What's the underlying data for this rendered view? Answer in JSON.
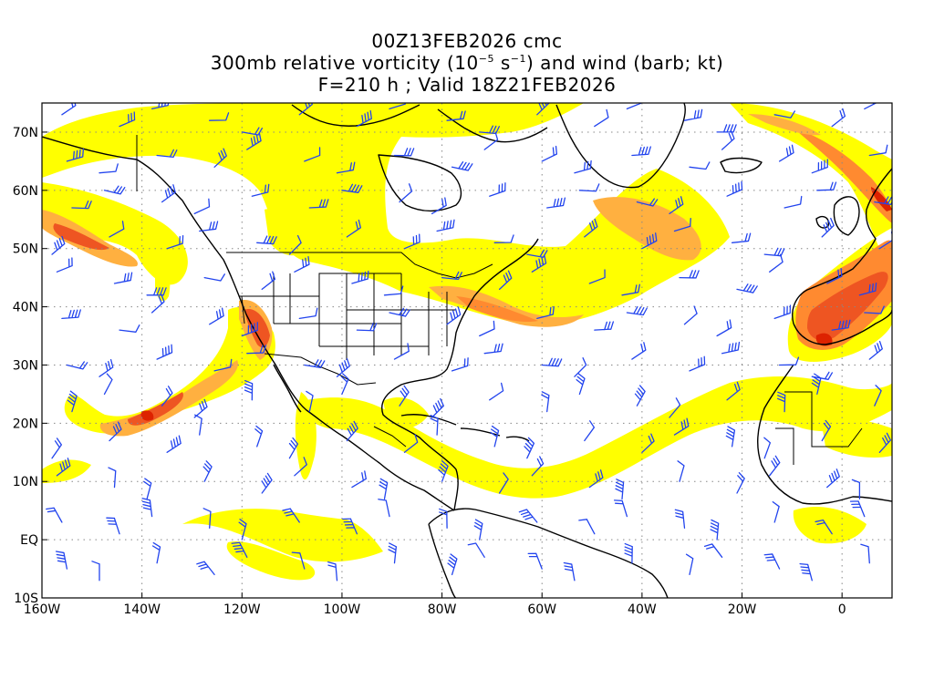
{
  "header": {
    "line1": "00Z13FEB2026 cmc",
    "line2_prefix": "300mb relative vorticity (10",
    "line2_exp1": "−5",
    "line2_mid": " s",
    "line2_exp2": "−1",
    "line2_suffix": ") and wind (barb; kt)",
    "line3": "F=210 h ; Valid 18Z21FEB2026"
  },
  "map": {
    "projection": "latitude-longitude",
    "lon_range": [
      -160,
      10
    ],
    "lat_range": [
      -10,
      75
    ],
    "lon_ticks": [
      "160W",
      "140W",
      "120W",
      "100W",
      "80W",
      "60W",
      "40W",
      "20W",
      "0"
    ],
    "lat_ticks": [
      "70N",
      "60N",
      "50N",
      "40N",
      "30N",
      "20N",
      "10N",
      "EQ",
      "10S"
    ],
    "grid": "dotted",
    "colors": {
      "fill_low": "#ffff00",
      "fill_mid1": "#ffd84a",
      "fill_mid2": "#ffb040",
      "fill_mid3": "#ff8a30",
      "fill_high": "#ee5522",
      "fill_peak": "#dd2200",
      "barb": "#2244ee",
      "coast": "#000000",
      "grid": "#888888"
    }
  }
}
